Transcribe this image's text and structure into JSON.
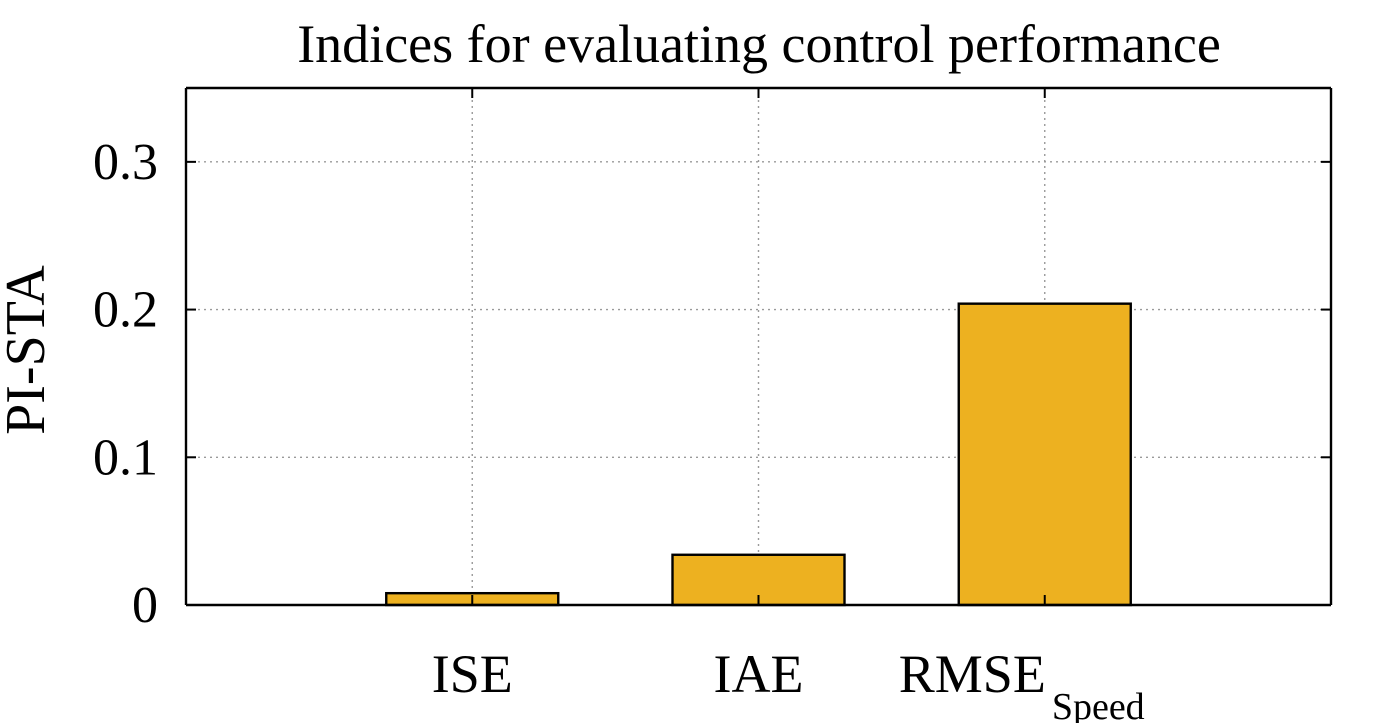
{
  "chart_data": {
    "type": "bar",
    "title": "Indices for evaluating control performance",
    "xlabel": "",
    "ylabel": "PI-STA",
    "categories": [
      "ISE",
      "IAE",
      "RMSE"
    ],
    "category_subscripts": [
      "",
      "",
      "Speed"
    ],
    "values": [
      0.008,
      0.034,
      0.204
    ],
    "ylim": [
      0,
      0.35
    ],
    "yticks": [
      0,
      0.1,
      0.2,
      0.3
    ],
    "ytick_labels": [
      "0",
      "0.1",
      "0.2",
      "0.3"
    ],
    "xlim": [
      0,
      4
    ],
    "grid": true,
    "bar_color": "#EDB120",
    "legend": null
  }
}
